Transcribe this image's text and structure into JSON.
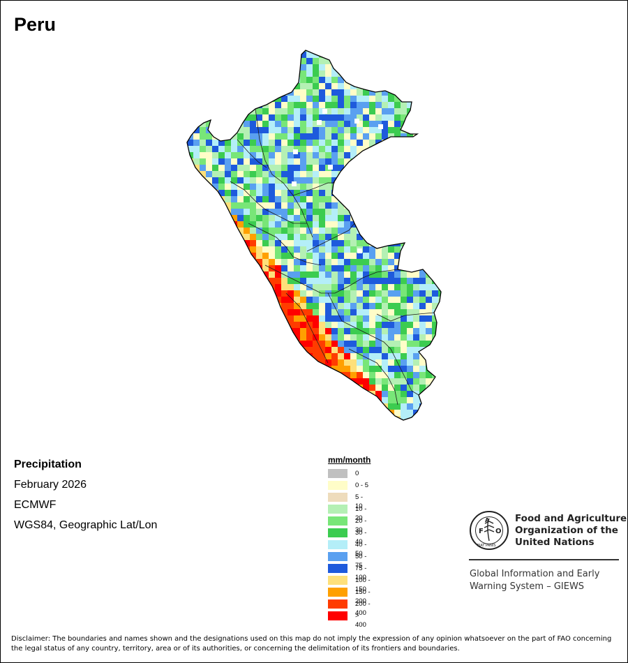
{
  "title": "Peru",
  "info": {
    "variable": "Precipitation",
    "period": "February 2026",
    "source": "ECMWF",
    "projection": "WGS84, Geographic Lat/Lon"
  },
  "legend": {
    "unit": "mm/month",
    "classes": [
      {
        "label": "0",
        "color": "#c0c0c0"
      },
      {
        "label": "0 - 5",
        "color": "#fffdc8"
      },
      {
        "label": "5 - 10",
        "color": "#eedcbc"
      },
      {
        "label": "10 - 20",
        "color": "#b4f0b4"
      },
      {
        "label": "20 - 30",
        "color": "#78e678"
      },
      {
        "label": "30 - 40",
        "color": "#3ccc50"
      },
      {
        "label": "40 - 50",
        "color": "#b4eef8"
      },
      {
        "label": "50 - 75",
        "color": "#5aa0f0"
      },
      {
        "label": "75 - 100",
        "color": "#1e5adc"
      },
      {
        "label": "100 - 150",
        "color": "#fee07a"
      },
      {
        "label": "150 - 200",
        "color": "#ffa000"
      },
      {
        "label": "200 - 400",
        "color": "#ff3c00"
      },
      {
        "label": "> 400",
        "color": "#ff0000"
      }
    ]
  },
  "organization": {
    "logo_text": "FAO",
    "logo_motto": "FIAT PANIS",
    "name_line1": "Food and Agriculture",
    "name_line2": "Organization of the",
    "name_line3": "United Nations",
    "system_line1": "Global Information and Early",
    "system_line2": "Warning System – GIEWS"
  },
  "disclaimer": "Disclaimer: The boundaries and names shown and the designations used on this map do not imply the expression of any opinion whatsoever on the part of FAO concerning the legal status of any country, territory, area or of its authorities, or concerning the delimitation of its frontiers and boundaries."
}
